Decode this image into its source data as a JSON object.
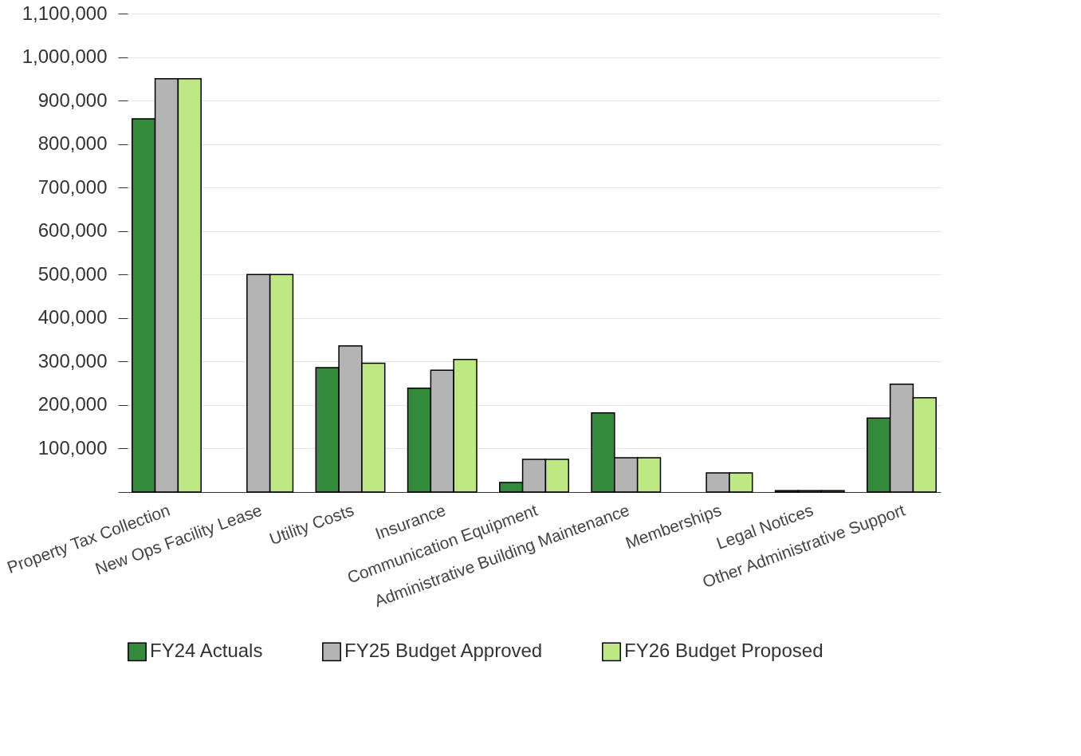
{
  "chart_data": {
    "type": "bar",
    "categories": [
      "Property Tax Collection",
      "New Ops Facility Lease",
      "Utility Costs",
      "Insurance",
      "Communication Equipment",
      "Administrative Building Maintenance",
      "Memberships",
      "Legal Notices",
      "Other Administrative Support"
    ],
    "series": [
      {
        "name": "FY24 Actuals",
        "color": "#338a3a",
        "values": [
          858000,
          null,
          286000,
          239000,
          22000,
          182000,
          null,
          3000,
          170000
        ]
      },
      {
        "name": "FY25 Budget Approved",
        "color": "#b4b4b4",
        "values": [
          950000,
          500000,
          336000,
          280000,
          75000,
          79000,
          44000,
          3000,
          248000
        ]
      },
      {
        "name": "FY26 Budget Proposed",
        "color": "#bde884",
        "values": [
          950000,
          500000,
          296000,
          305000,
          75000,
          79000,
          44000,
          3000,
          217000
        ]
      }
    ],
    "ylim": [
      0,
      1100000
    ],
    "yticks": [
      {
        "value": 0,
        "label": null
      },
      {
        "value": 100000,
        "label": "100,000"
      },
      {
        "value": 200000,
        "label": "200,000"
      },
      {
        "value": 300000,
        "label": "300,000"
      },
      {
        "value": 400000,
        "label": "400,000"
      },
      {
        "value": 500000,
        "label": "500,000"
      },
      {
        "value": 600000,
        "label": "600,000"
      },
      {
        "value": 700000,
        "label": "700,000"
      },
      {
        "value": 800000,
        "label": "800,000"
      },
      {
        "value": 900000,
        "label": "900,000"
      },
      {
        "value": 1000000,
        "label": "1,000,000"
      },
      {
        "value": 1100000,
        "label": "1,100,000"
      }
    ],
    "grid": "y",
    "legend": "bottom"
  }
}
